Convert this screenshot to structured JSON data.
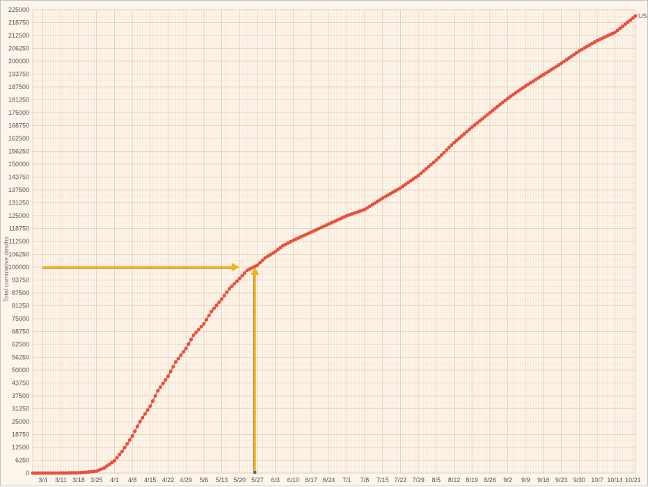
{
  "chart_data": {
    "type": "line",
    "title": "",
    "ylabel": "Total cumulative deaths",
    "xlabel": "",
    "x_start_date": "2020-02-29",
    "x_end_date": "2020-10-22",
    "ylim": [
      0,
      225000
    ],
    "y_ticks": [
      0,
      6250,
      12500,
      18750,
      25000,
      31250,
      37500,
      43750,
      50000,
      56250,
      62500,
      68750,
      75000,
      81250,
      87500,
      93750,
      100000,
      106250,
      112500,
      118750,
      125000,
      131250,
      137500,
      143750,
      150000,
      156250,
      162500,
      168750,
      175000,
      181250,
      187500,
      193750,
      200000,
      206250,
      212500,
      218750,
      225000
    ],
    "x_ticks": [
      {
        "label": "3/4",
        "date": "2020-03-04"
      },
      {
        "label": "3/11",
        "date": "2020-03-11"
      },
      {
        "label": "3/18",
        "date": "2020-03-18"
      },
      {
        "label": "3/25",
        "date": "2020-03-25"
      },
      {
        "label": "4/1",
        "date": "2020-04-01"
      },
      {
        "label": "4/8",
        "date": "2020-04-08"
      },
      {
        "label": "4/15",
        "date": "2020-04-15"
      },
      {
        "label": "4/22",
        "date": "2020-04-22"
      },
      {
        "label": "4/29",
        "date": "2020-04-29"
      },
      {
        "label": "5/6",
        "date": "2020-05-06"
      },
      {
        "label": "5/13",
        "date": "2020-05-13"
      },
      {
        "label": "5/20",
        "date": "2020-05-20"
      },
      {
        "label": "5/27",
        "date": "2020-05-27"
      },
      {
        "label": "6/3",
        "date": "2020-06-03"
      },
      {
        "label": "6/10",
        "date": "2020-06-10"
      },
      {
        "label": "6/17",
        "date": "2020-06-17"
      },
      {
        "label": "6/24",
        "date": "2020-06-24"
      },
      {
        "label": "7/1",
        "date": "2020-07-01"
      },
      {
        "label": "7/8",
        "date": "2020-07-08"
      },
      {
        "label": "7/15",
        "date": "2020-07-15"
      },
      {
        "label": "7/22",
        "date": "2020-07-22"
      },
      {
        "label": "7/29",
        "date": "2020-07-29"
      },
      {
        "label": "8/5",
        "date": "2020-08-05"
      },
      {
        "label": "8/12",
        "date": "2020-08-12"
      },
      {
        "label": "8/19",
        "date": "2020-08-19"
      },
      {
        "label": "8/26",
        "date": "2020-08-26"
      },
      {
        "label": "9/2",
        "date": "2020-09-02"
      },
      {
        "label": "9/9",
        "date": "2020-09-09"
      },
      {
        "label": "9/16",
        "date": "2020-09-16"
      },
      {
        "label": "9/23",
        "date": "2020-09-23"
      },
      {
        "label": "9/30",
        "date": "2020-09-30"
      },
      {
        "label": "10/7",
        "date": "2020-10-07"
      },
      {
        "label": "10/14",
        "date": "2020-10-14"
      },
      {
        "label": "10/21",
        "date": "2020-10-21"
      }
    ],
    "grid": true,
    "series": [
      {
        "name": "US",
        "color": "#e8503e",
        "points": [
          {
            "date": "2020-02-29",
            "y": 0
          },
          {
            "date": "2020-03-04",
            "y": 10
          },
          {
            "date": "2020-03-11",
            "y": 30
          },
          {
            "date": "2020-03-18",
            "y": 150
          },
          {
            "date": "2020-03-21",
            "y": 400
          },
          {
            "date": "2020-03-25",
            "y": 1000
          },
          {
            "date": "2020-03-28",
            "y": 2500
          },
          {
            "date": "2020-04-01",
            "y": 6000
          },
          {
            "date": "2020-04-04",
            "y": 10500
          },
          {
            "date": "2020-04-08",
            "y": 18000
          },
          {
            "date": "2020-04-11",
            "y": 25000
          },
          {
            "date": "2020-04-15",
            "y": 32500
          },
          {
            "date": "2020-04-18",
            "y": 40000
          },
          {
            "date": "2020-04-22",
            "y": 47000
          },
          {
            "date": "2020-04-25",
            "y": 54000
          },
          {
            "date": "2020-04-29",
            "y": 60500
          },
          {
            "date": "2020-05-02",
            "y": 67000
          },
          {
            "date": "2020-05-06",
            "y": 72500
          },
          {
            "date": "2020-05-09",
            "y": 78500
          },
          {
            "date": "2020-05-13",
            "y": 84500
          },
          {
            "date": "2020-05-16",
            "y": 89500
          },
          {
            "date": "2020-05-20",
            "y": 94500
          },
          {
            "date": "2020-05-23",
            "y": 98500
          },
          {
            "date": "2020-05-27",
            "y": 101000
          },
          {
            "date": "2020-05-30",
            "y": 104500
          },
          {
            "date": "2020-06-03",
            "y": 107500
          },
          {
            "date": "2020-06-06",
            "y": 110500
          },
          {
            "date": "2020-06-10",
            "y": 113000
          },
          {
            "date": "2020-06-17",
            "y": 117000
          },
          {
            "date": "2020-06-24",
            "y": 121000
          },
          {
            "date": "2020-07-01",
            "y": 125000
          },
          {
            "date": "2020-07-08",
            "y": 128000
          },
          {
            "date": "2020-07-15",
            "y": 133500
          },
          {
            "date": "2020-07-22",
            "y": 138500
          },
          {
            "date": "2020-07-29",
            "y": 144500
          },
          {
            "date": "2020-08-05",
            "y": 152000
          },
          {
            "date": "2020-08-12",
            "y": 160500
          },
          {
            "date": "2020-08-19",
            "y": 168000
          },
          {
            "date": "2020-08-26",
            "y": 175000
          },
          {
            "date": "2020-09-02",
            "y": 182000
          },
          {
            "date": "2020-09-09",
            "y": 188000
          },
          {
            "date": "2020-09-16",
            "y": 193500
          },
          {
            "date": "2020-09-23",
            "y": 199000
          },
          {
            "date": "2020-09-30",
            "y": 205000
          },
          {
            "date": "2020-10-07",
            "y": 210000
          },
          {
            "date": "2020-10-14",
            "y": 214000
          },
          {
            "date": "2020-10-18",
            "y": 218000
          },
          {
            "date": "2020-10-22",
            "y": 222000
          }
        ]
      }
    ],
    "annotations": [
      {
        "type": "horizontal-arrow",
        "color": "#f2b118",
        "from_date": "2020-02-29",
        "to_date": "2020-05-20",
        "y": 100000
      },
      {
        "type": "vertical-arrow",
        "color": "#f2b118",
        "date": "2020-05-26",
        "from_y": 0,
        "to_y": 100000
      }
    ]
  }
}
